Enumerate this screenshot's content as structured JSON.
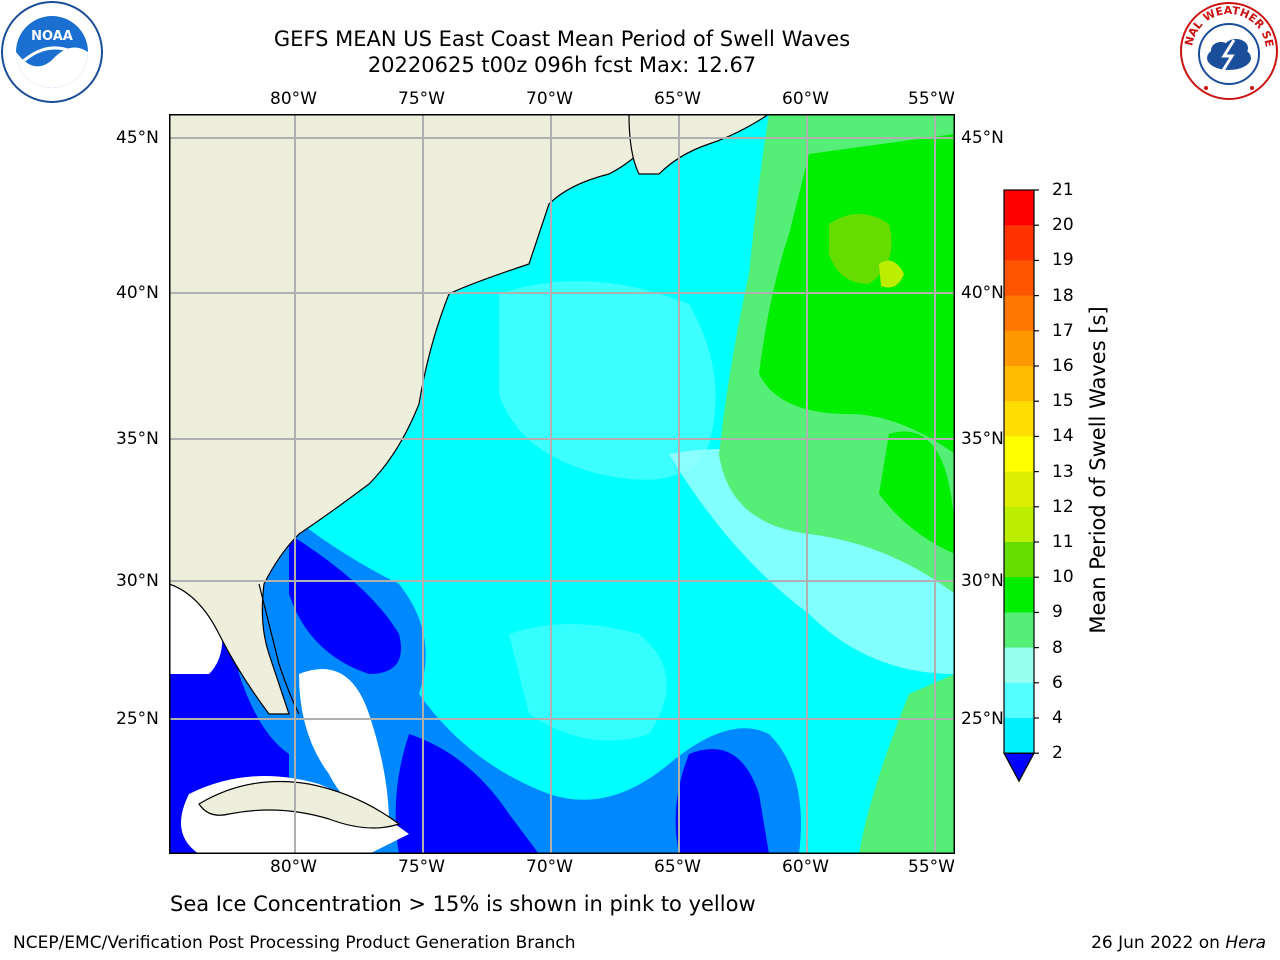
{
  "header": {
    "title_line1": "GEFS MEAN US East Coast Mean Period of Swell Waves",
    "title_line2": "20220625 t00z 096h fcst   Max: 12.67"
  },
  "logos": {
    "left": "NOAA",
    "right": "NATIONAL WEATHER SERVICE"
  },
  "map": {
    "lon_labels": [
      "80°W",
      "75°W",
      "70°W",
      "65°W",
      "60°W",
      "55°W"
    ],
    "lat_labels": [
      "45°N",
      "40°N",
      "35°N",
      "30°N",
      "25°N"
    ],
    "colors": {
      "land": "#eeeedd",
      "grid": "#b0b0b0",
      "coast": "#000000",
      "missing": "#ffffff"
    }
  },
  "colorbar": {
    "title": "Mean Period of Swell Waves [s]",
    "ticks": [
      "21",
      "20",
      "19",
      "18",
      "17",
      "16",
      "15",
      "14",
      "13",
      "12",
      "11",
      "10",
      "9",
      "8",
      "6",
      "4",
      "2"
    ],
    "colors": [
      "#ff0000",
      "#ff3300",
      "#ff5500",
      "#ff7700",
      "#ff9900",
      "#ffbb00",
      "#ffdd00",
      "#ffff00",
      "#ddee00",
      "#bbee00",
      "#66dd00",
      "#00ee00",
      "#55ee77",
      "#99ffee",
      "#55ffff",
      "#00f0ff",
      "#0088ff",
      "#0000ff"
    ]
  },
  "note": "Sea Ice Concentration > 15% is shown in pink to yellow",
  "footer": {
    "left": "NCEP/EMC/Verification Post Processing Product Generation Branch",
    "right_date": "26 Jun 2022 on ",
    "right_host": "Hera"
  }
}
